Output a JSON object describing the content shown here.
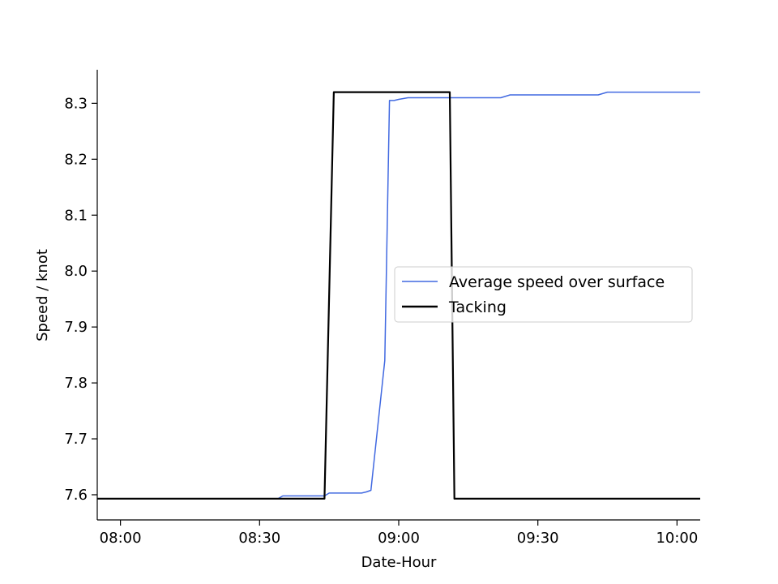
{
  "chart_data": {
    "type": "line",
    "title": "",
    "xlabel": "Date-Hour",
    "ylabel": "Speed / knot",
    "x_ticks": [
      "08:00",
      "08:30",
      "09:00",
      "09:30",
      "10:00"
    ],
    "y_ticks": [
      "7.6",
      "7.7",
      "7.8",
      "7.9",
      "8.0",
      "8.1",
      "8.2",
      "8.3"
    ],
    "xlim": [
      "07:55",
      "10:05"
    ],
    "ylim": [
      7.555,
      8.36
    ],
    "grid": false,
    "legend_position": "center-right",
    "series": [
      {
        "name": "Average speed over surface",
        "color": "#4169e1",
        "x": [
          "07:55",
          "08:34",
          "08:35",
          "08:44",
          "08:45",
          "08:52",
          "08:53",
          "08:54",
          "08:57",
          "08:58",
          "08:59",
          "09:00",
          "09:02",
          "09:04",
          "09:10",
          "09:20",
          "09:22",
          "09:24",
          "09:30",
          "09:40",
          "09:43",
          "09:45",
          "09:50",
          "10:00",
          "10:05"
        ],
        "y": [
          7.593,
          7.593,
          7.598,
          7.598,
          7.603,
          7.603,
          7.605,
          7.608,
          7.84,
          8.305,
          8.305,
          8.307,
          8.31,
          8.31,
          8.31,
          8.31,
          8.31,
          8.315,
          8.315,
          8.315,
          8.315,
          8.32,
          8.32,
          8.32,
          8.32
        ]
      },
      {
        "name": "Tacking",
        "color": "#000000",
        "x": [
          "07:55",
          "08:44",
          "08:46",
          "08:50",
          "09:00",
          "09:10",
          "09:11",
          "09:12",
          "09:20",
          "10:05"
        ],
        "y": [
          7.593,
          7.593,
          8.32,
          8.32,
          8.32,
          8.32,
          8.32,
          7.593,
          7.593,
          7.593
        ]
      }
    ]
  }
}
